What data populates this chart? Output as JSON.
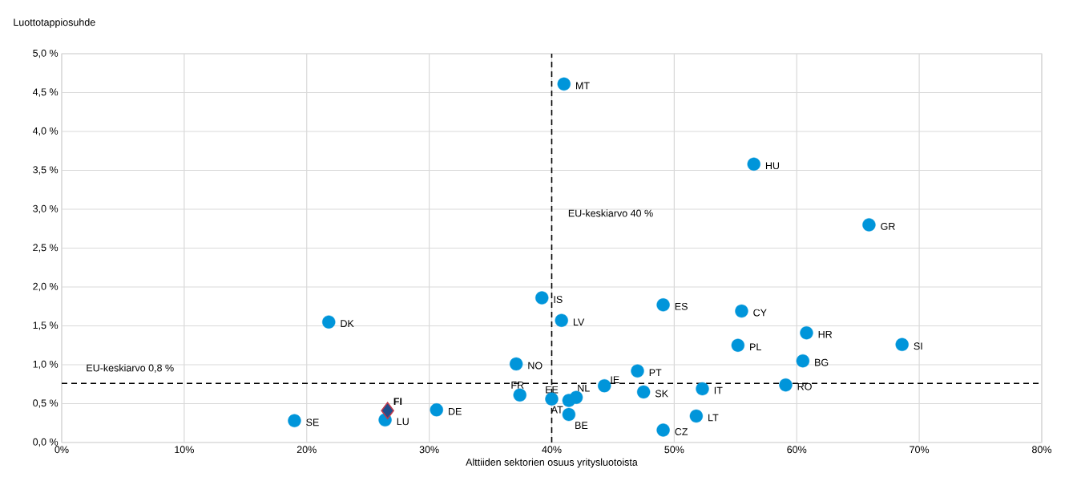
{
  "chart_data": {
    "type": "scatter",
    "xlabel": "Alttiiden sektorien osuus yritysluotoista",
    "ylabel": "Luottotappiosuhde",
    "xlim": [
      0,
      80
    ],
    "ylim": [
      0,
      5
    ],
    "xticks": [
      {
        "value": 0,
        "label": "0%"
      },
      {
        "value": 10,
        "label": "10%"
      },
      {
        "value": 20,
        "label": "20%"
      },
      {
        "value": 30,
        "label": "30%"
      },
      {
        "value": 40,
        "label": "40%"
      },
      {
        "value": 50,
        "label": "50%"
      },
      {
        "value": 60,
        "label": "60%"
      },
      {
        "value": 70,
        "label": "70%"
      },
      {
        "value": 80,
        "label": "80%"
      }
    ],
    "yticks": [
      {
        "value": 0,
        "label": "0,0 %"
      },
      {
        "value": 0.5,
        "label": "0,5 %"
      },
      {
        "value": 1,
        "label": "1,0 %"
      },
      {
        "value": 1.5,
        "label": "1,5 %"
      },
      {
        "value": 2,
        "label": "2,0 %"
      },
      {
        "value": 2.5,
        "label": "2,5 %"
      },
      {
        "value": 3,
        "label": "3,0 %"
      },
      {
        "value": 3.5,
        "label": "3,5 %"
      },
      {
        "value": 4,
        "label": "4,0 %"
      },
      {
        "value": 4.5,
        "label": "4,5 %"
      },
      {
        "value": 5,
        "label": "5,0 %"
      }
    ],
    "grid": true,
    "series": [
      {
        "color": "#0095da",
        "marker": "circle",
        "x": [
          41.0,
          56.5,
          65.9,
          39.2,
          49.1,
          55.5,
          40.8,
          21.8,
          60.8,
          55.2,
          68.6,
          60.5,
          37.1,
          47.0,
          44.3,
          47.5,
          52.3,
          59.1,
          37.4,
          40.0,
          42.0,
          41.4,
          41.4,
          51.8,
          49.1,
          30.6,
          26.4,
          19.0
        ],
        "values": [
          4.61,
          3.58,
          2.8,
          1.86,
          1.77,
          1.69,
          1.57,
          1.55,
          1.41,
          1.25,
          1.26,
          1.05,
          1.01,
          0.92,
          0.73,
          0.65,
          0.69,
          0.74,
          0.61,
          0.56,
          0.58,
          0.54,
          0.36,
          0.34,
          0.16,
          0.42,
          0.29,
          0.28
        ]
      },
      {
        "color": "#1f4e8c",
        "marker": "diamond",
        "x": [
          26.6
        ],
        "values": [
          0.41
        ]
      }
    ],
    "ref_lines": [
      {
        "axis": "x",
        "value": 40,
        "label": "EU-keskiarvo 40 %",
        "color": "#000000",
        "line_style": "dashed"
      },
      {
        "axis": "y",
        "value": 0.76,
        "label": "EU-keskiarvo 0,8 %",
        "color": "#000000",
        "line_style": "dashed"
      }
    ],
    "annotations": [
      {
        "text": "MT",
        "x": 41.0,
        "y": 4.61
      },
      {
        "text": "HU",
        "x": 56.5,
        "y": 3.58
      },
      {
        "text": "GR",
        "x": 65.9,
        "y": 2.8
      },
      {
        "text": "IS",
        "x": 39.2,
        "y": 1.86
      },
      {
        "text": "ES",
        "x": 49.1,
        "y": 1.77
      },
      {
        "text": "CY",
        "x": 55.5,
        "y": 1.69
      },
      {
        "text": "LV",
        "x": 40.8,
        "y": 1.57
      },
      {
        "text": "DK",
        "x": 21.8,
        "y": 1.55
      },
      {
        "text": "HR",
        "x": 60.8,
        "y": 1.41
      },
      {
        "text": "PL",
        "x": 55.2,
        "y": 1.25
      },
      {
        "text": "SI",
        "x": 68.6,
        "y": 1.26
      },
      {
        "text": "BG",
        "x": 60.5,
        "y": 1.05
      },
      {
        "text": "NO",
        "x": 37.1,
        "y": 1.01
      },
      {
        "text": "PT",
        "x": 47.0,
        "y": 0.92
      },
      {
        "text": "IE",
        "x": 44.3,
        "y": 0.73
      },
      {
        "text": "SK",
        "x": 47.5,
        "y": 0.65
      },
      {
        "text": "IT",
        "x": 52.3,
        "y": 0.69
      },
      {
        "text": "RO",
        "x": 59.1,
        "y": 0.74
      },
      {
        "text": "FR",
        "x": 37.4,
        "y": 0.61
      },
      {
        "text": "EE",
        "x": 40.0,
        "y": 0.56
      },
      {
        "text": "NL",
        "x": 42.0,
        "y": 0.58
      },
      {
        "text": "AT",
        "x": 41.4,
        "y": 0.54
      },
      {
        "text": "BE",
        "x": 41.4,
        "y": 0.36
      },
      {
        "text": "LT",
        "x": 51.8,
        "y": 0.34
      },
      {
        "text": "CZ",
        "x": 49.1,
        "y": 0.16
      },
      {
        "text": "DE",
        "x": 30.6,
        "y": 0.42
      },
      {
        "text": "LU",
        "x": 26.4,
        "y": 0.29
      },
      {
        "text": "SE",
        "x": 19.0,
        "y": 0.28
      },
      {
        "text": "FI",
        "x": 26.6,
        "y": 0.41
      }
    ]
  }
}
